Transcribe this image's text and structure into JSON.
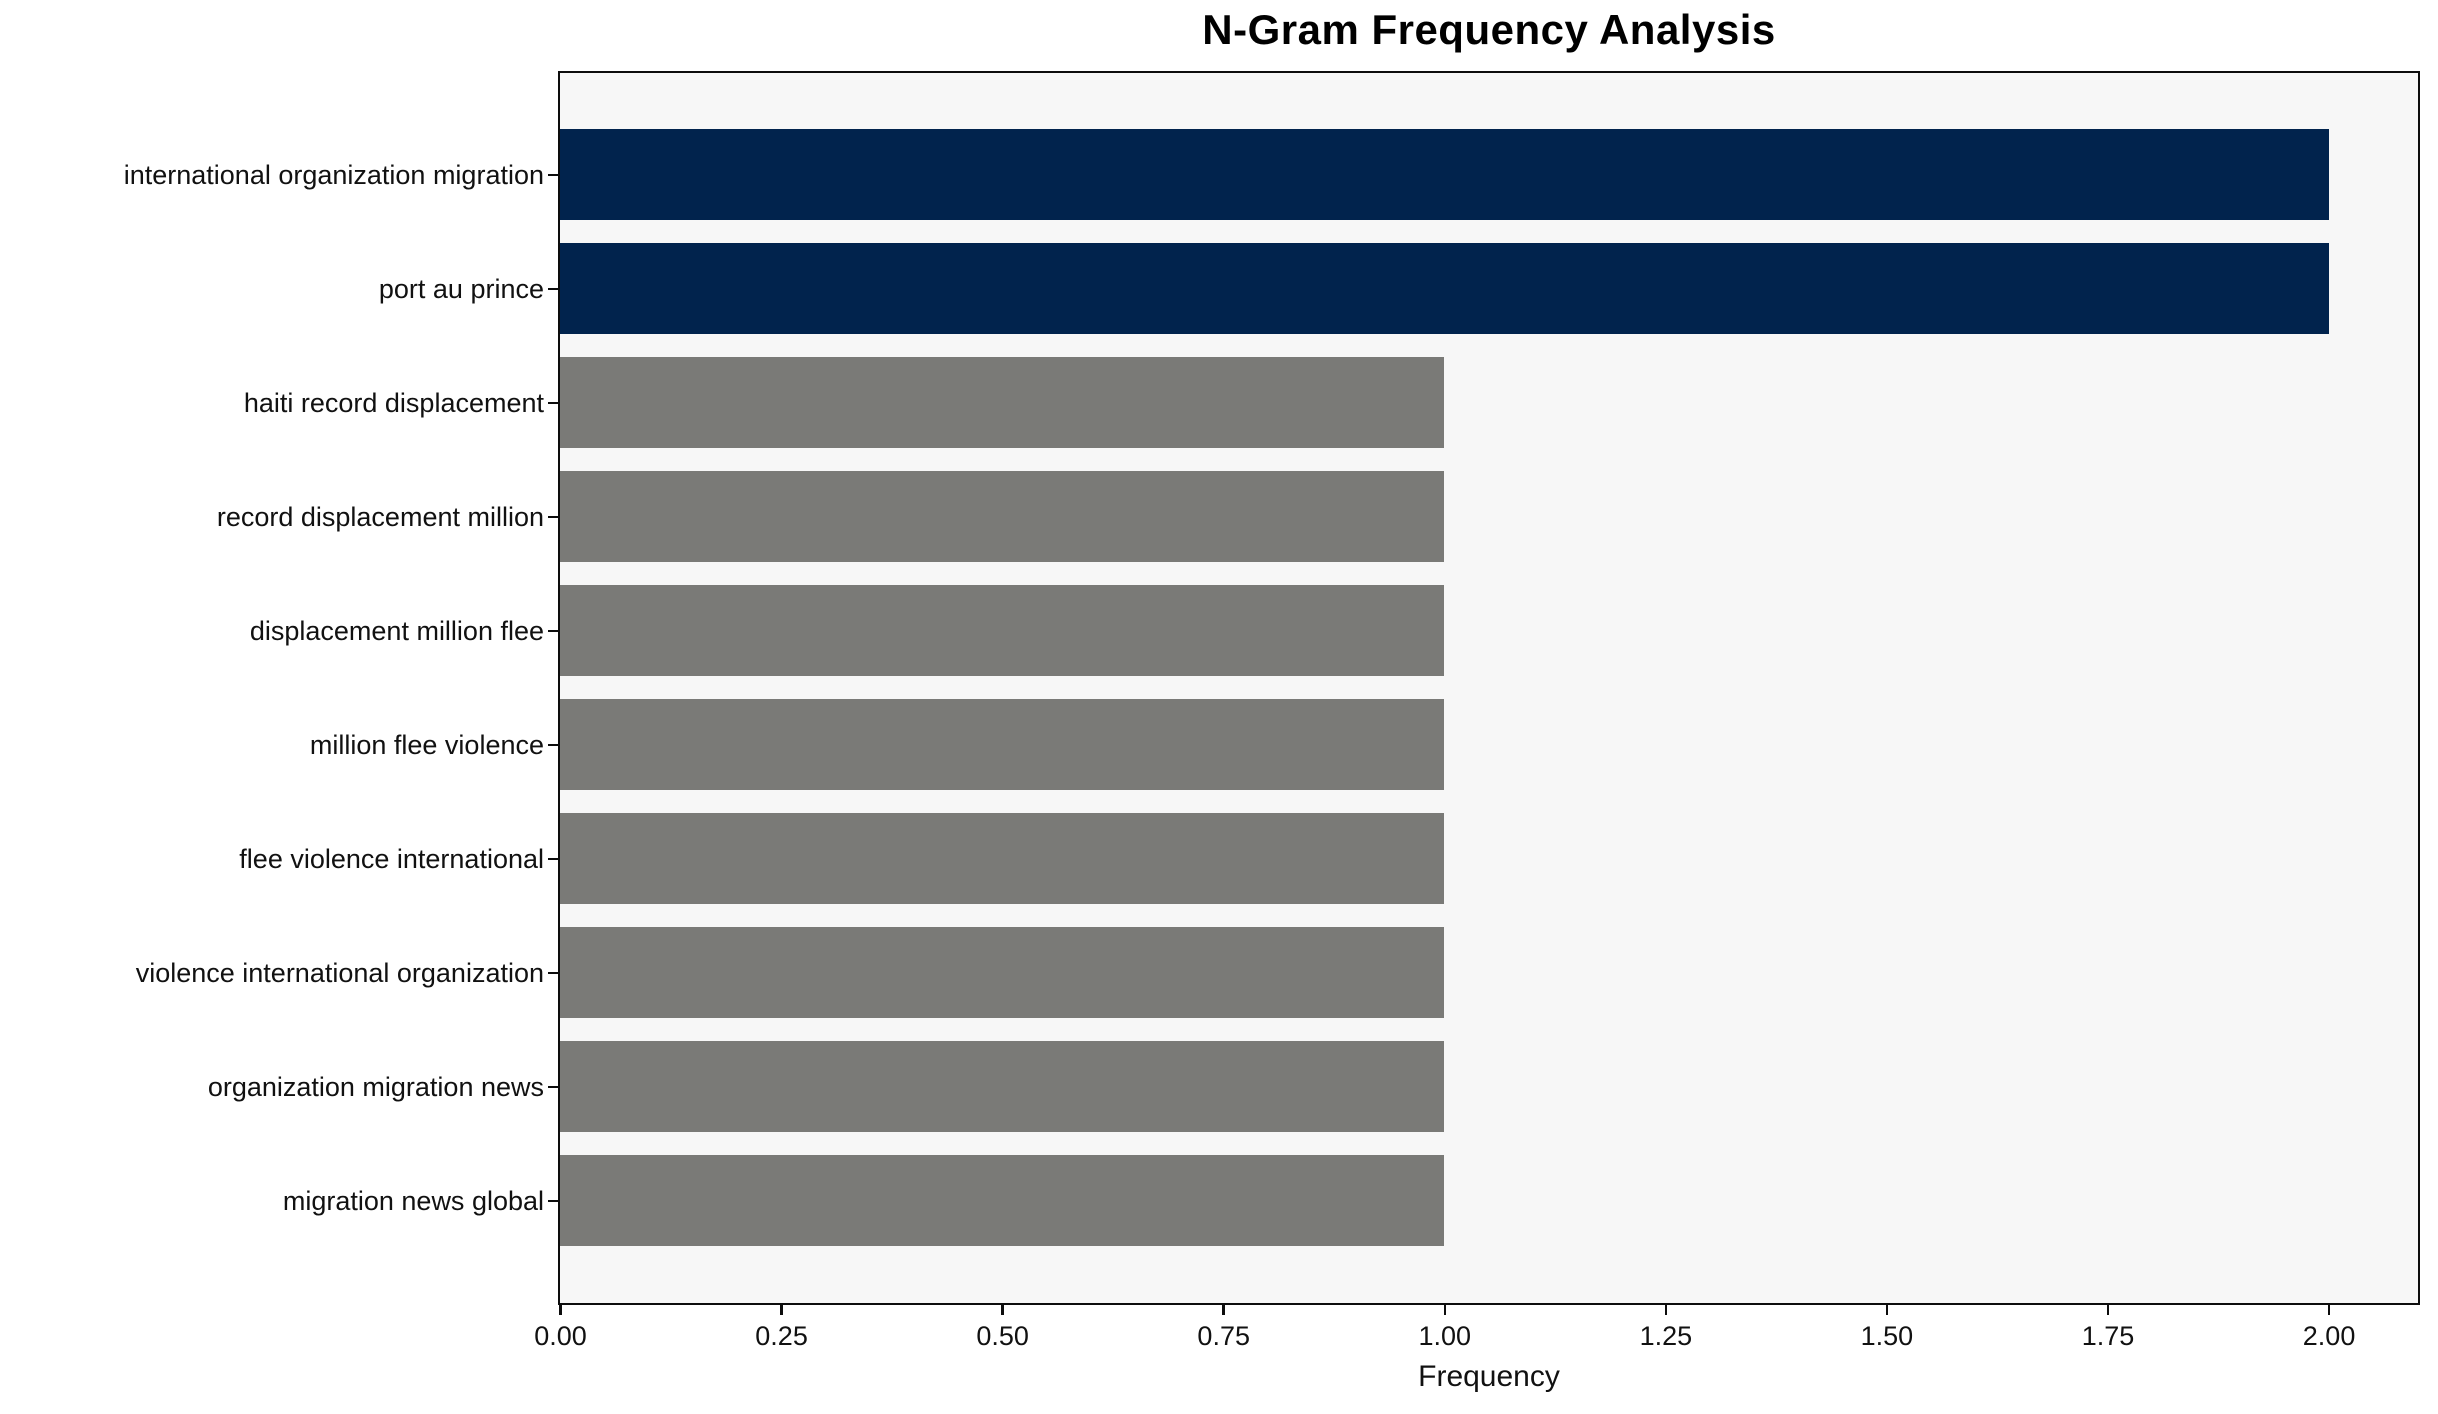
{
  "chart": {
    "title": "N-Gram Frequency Analysis",
    "xlabel": "Frequency"
  },
  "chart_data": {
    "type": "bar",
    "orientation": "horizontal",
    "title": "N-Gram Frequency Analysis",
    "xlabel": "Frequency",
    "ylabel": "",
    "categories": [
      "international organization migration",
      "port au prince",
      "haiti record displacement",
      "record displacement million",
      "displacement million flee",
      "million flee violence",
      "flee violence international",
      "violence international organization",
      "organization migration news",
      "migration news global"
    ],
    "values": [
      2,
      2,
      1,
      1,
      1,
      1,
      1,
      1,
      1,
      1
    ],
    "bar_colors": [
      "#01234d",
      "#01234d",
      "#7a7a77",
      "#7a7a77",
      "#7a7a77",
      "#7a7a77",
      "#7a7a77",
      "#7a7a77",
      "#7a7a77",
      "#7a7a77"
    ],
    "colors": {
      "highlight": "#01234d",
      "default": "#7a7a77",
      "plot_background": "#f7f7f7",
      "figure_background": "#ffffff",
      "spine": "#0d0d0d"
    },
    "xlim": [
      0,
      2.1
    ],
    "xticks": [
      0,
      0.25,
      0.5,
      0.75,
      1.0,
      1.25,
      1.5,
      1.75,
      2.0
    ],
    "xtick_labels": [
      "0.00",
      "0.25",
      "0.50",
      "0.75",
      "1.00",
      "1.25",
      "1.50",
      "1.75",
      "2.00"
    ],
    "grid": false,
    "legend": null
  }
}
